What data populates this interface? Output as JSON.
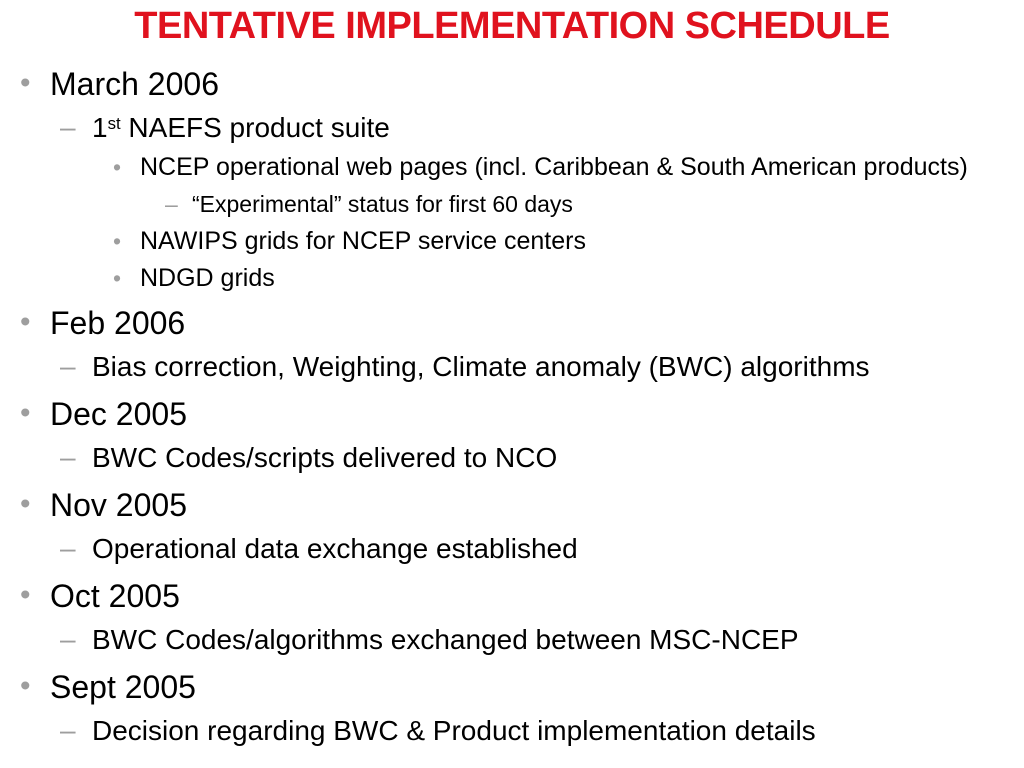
{
  "slide": {
    "title": "TENTATIVE IMPLEMENTATION SCHEDULE",
    "title_color": "#e0121e",
    "bullet_color": "#9e9e9e",
    "text_color": "#000000",
    "background_color": "#ffffff",
    "bullets": {
      "level1": "•",
      "level2": "–",
      "level3": "•",
      "level4": "–"
    },
    "items": [
      {
        "level": 1,
        "text": "March 2006"
      },
      {
        "level": 2,
        "prefix": "1",
        "sup": "st",
        "rest": " NAEFS product suite"
      },
      {
        "level": 3,
        "text": "NCEP operational web pages (incl. Caribbean & South American products)"
      },
      {
        "level": 4,
        "text": "“Experimental” status for first 60 days"
      },
      {
        "level": 3,
        "text": "NAWIPS grids for NCEP service centers"
      },
      {
        "level": 3,
        "text": "NDGD grids"
      },
      {
        "level": 1,
        "text": "Feb 2006"
      },
      {
        "level": 2,
        "text": "Bias correction, Weighting, Climate anomaly (BWC) algorithms"
      },
      {
        "level": 1,
        "text": "Dec 2005"
      },
      {
        "level": 2,
        "text": "BWC Codes/scripts delivered to NCO"
      },
      {
        "level": 1,
        "text": "Nov 2005"
      },
      {
        "level": 2,
        "text": "Operational data exchange established"
      },
      {
        "level": 1,
        "text": "Oct 2005"
      },
      {
        "level": 2,
        "text": "BWC Codes/algorithms exchanged between MSC-NCEP"
      },
      {
        "level": 1,
        "text": "Sept 2005"
      },
      {
        "level": 2,
        "text": "Decision regarding BWC & Product implementation details"
      }
    ]
  }
}
